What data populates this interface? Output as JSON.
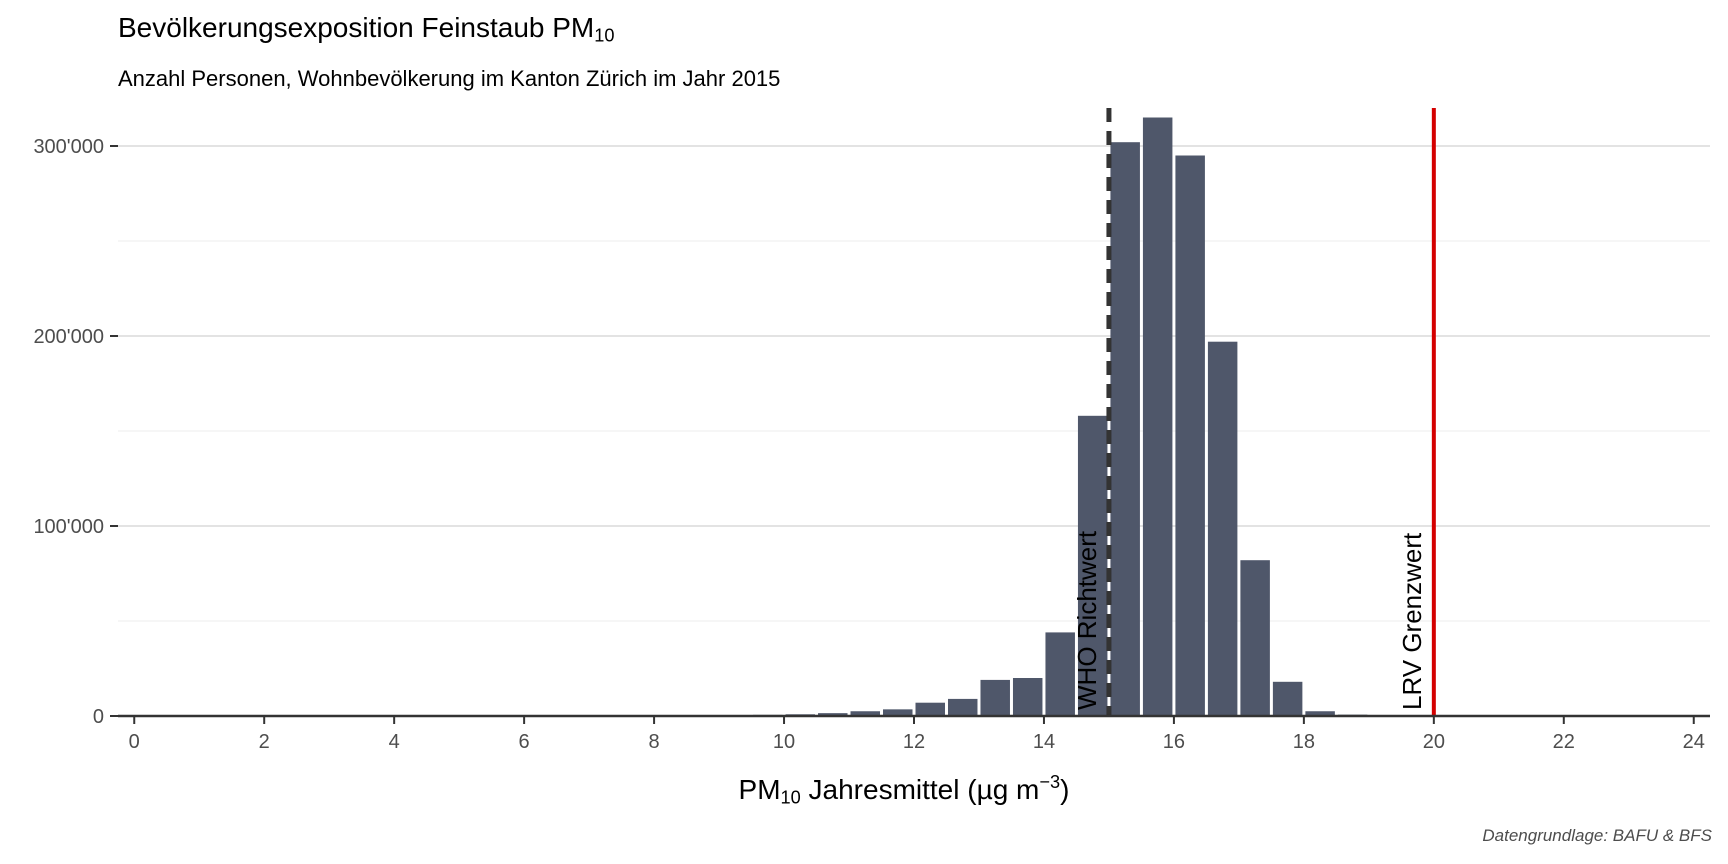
{
  "chart_data": {
    "type": "bar",
    "title_main": "Bevölkerungsexposition Feinstaub PM",
    "title_sub": "10",
    "subtitle": "Anzahl Personen, Wohnbevölkerung im Kanton Zürich im Jahr 2015",
    "xlabel_prefix": "PM",
    "xlabel_sub": "10",
    "xlabel_main": " Jahresmittel (µg m",
    "xlabel_sup": "−3",
    "xlabel_end": ")",
    "caption": "Datengrundlage: BAFU & BFS",
    "xlim": [
      -0.25,
      24.25
    ],
    "ylim": [
      0,
      320000
    ],
    "x_ticks": [
      0,
      2,
      4,
      6,
      8,
      10,
      12,
      14,
      16,
      18,
      20,
      22,
      24
    ],
    "x_tick_labels": [
      "0",
      "2",
      "4",
      "6",
      "8",
      "10",
      "12",
      "14",
      "16",
      "18",
      "20",
      "22",
      "24"
    ],
    "y_ticks": [
      0,
      100000,
      200000,
      300000
    ],
    "y_tick_labels": [
      "0",
      "100'000",
      "200'000",
      "300'000"
    ],
    "grid": true,
    "bin_width": 0.5,
    "bins": [
      {
        "x": 9.75,
        "y": 600
      },
      {
        "x": 10.25,
        "y": 900
      },
      {
        "x": 10.75,
        "y": 1500
      },
      {
        "x": 11.25,
        "y": 2500
      },
      {
        "x": 11.75,
        "y": 3500
      },
      {
        "x": 12.25,
        "y": 7000
      },
      {
        "x": 12.75,
        "y": 9000
      },
      {
        "x": 13.25,
        "y": 19000
      },
      {
        "x": 13.75,
        "y": 20000
      },
      {
        "x": 14.25,
        "y": 44000
      },
      {
        "x": 14.75,
        "y": 158000
      },
      {
        "x": 15.25,
        "y": 302000
      },
      {
        "x": 15.75,
        "y": 315000
      },
      {
        "x": 16.25,
        "y": 295000
      },
      {
        "x": 16.75,
        "y": 197000
      },
      {
        "x": 17.25,
        "y": 82000
      },
      {
        "x": 17.75,
        "y": 18000
      },
      {
        "x": 18.25,
        "y": 2500
      },
      {
        "x": 18.75,
        "y": 700
      }
    ],
    "bar_color": "#4f576a",
    "reference_lines": [
      {
        "x": 15,
        "label": "WHO Richtwert",
        "color": "#333333",
        "style": "dashed"
      },
      {
        "x": 20,
        "label": "LRV Grenzwert",
        "color": "#d40000",
        "style": "solid"
      }
    ]
  }
}
